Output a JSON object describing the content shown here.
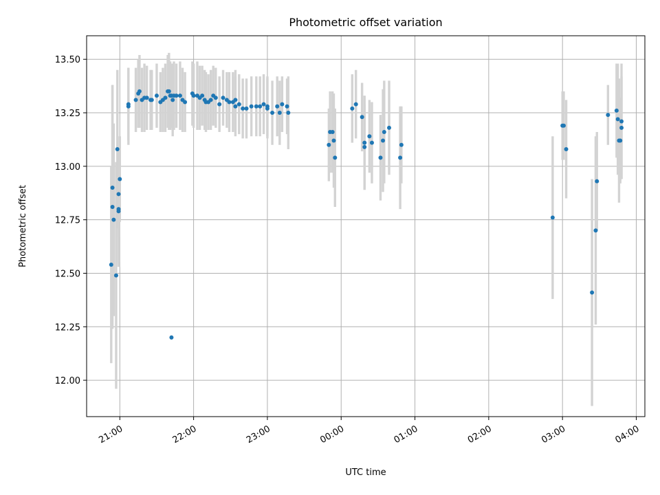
{
  "chart_data": {
    "type": "scatter",
    "title": "Photometric offset variation",
    "xlabel": "UTC time",
    "ylabel": "Photometric offset",
    "xlim": [
      "20:33",
      "04:07"
    ],
    "ylim": [
      11.83,
      13.61
    ],
    "grid": true,
    "x_ticks": [
      "21:00",
      "22:00",
      "23:00",
      "00:00",
      "01:00",
      "02:00",
      "03:00",
      "04:00"
    ],
    "y_ticks": [
      "12.00",
      "12.25",
      "12.50",
      "12.75",
      "13.00",
      "13.25",
      "13.50"
    ],
    "colors": {
      "point": "#1f77b4",
      "errorbar": "#d3d3d3",
      "grid": "#b0b0b0"
    },
    "series": [
      {
        "points": [
          {
            "t": "20:53",
            "y": 12.54,
            "err": 0.46
          },
          {
            "t": "20:54",
            "y": 12.81,
            "err": 0.57
          },
          {
            "t": "20:54",
            "y": 12.9,
            "err": 0.48
          },
          {
            "t": "20:55",
            "y": 12.75,
            "err": 0.45
          },
          {
            "t": "20:57",
            "y": 12.49,
            "err": 0.53
          },
          {
            "t": "20:58",
            "y": 13.08,
            "err": 0.37
          },
          {
            "t": "20:59",
            "y": 12.8,
            "err": 0.25
          },
          {
            "t": "20:59",
            "y": 12.87,
            "err": 0.2
          },
          {
            "t": "20:59",
            "y": 12.79,
            "err": 0.26
          },
          {
            "t": "21:00",
            "y": 12.94,
            "err": 0.2
          },
          {
            "t": "21:07",
            "y": 13.28,
            "err": 0.18
          },
          {
            "t": "21:07",
            "y": 13.29,
            "err": 0.17
          },
          {
            "t": "21:13",
            "y": 13.31,
            "err": 0.15
          },
          {
            "t": "21:15",
            "y": 13.34,
            "err": 0.16
          },
          {
            "t": "21:16",
            "y": 13.35,
            "err": 0.17
          },
          {
            "t": "21:18",
            "y": 13.31,
            "err": 0.15
          },
          {
            "t": "21:20",
            "y": 13.32,
            "err": 0.16
          },
          {
            "t": "21:22",
            "y": 13.32,
            "err": 0.15
          },
          {
            "t": "21:25",
            "y": 13.31,
            "err": 0.14
          },
          {
            "t": "21:26",
            "y": 13.31,
            "err": 0.14
          },
          {
            "t": "21:30",
            "y": 13.33,
            "err": 0.15
          },
          {
            "t": "21:33",
            "y": 13.3,
            "err": 0.14
          },
          {
            "t": "21:35",
            "y": 13.31,
            "err": 0.15
          },
          {
            "t": "21:37",
            "y": 13.32,
            "err": 0.16
          },
          {
            "t": "21:39",
            "y": 13.35,
            "err": 0.17
          },
          {
            "t": "21:40",
            "y": 13.35,
            "err": 0.18
          },
          {
            "t": "21:41",
            "y": 13.33,
            "err": 0.16
          },
          {
            "t": "21:42",
            "y": 13.33,
            "err": 0.15
          },
          {
            "t": "21:43",
            "y": 13.31,
            "err": 0.17
          },
          {
            "t": "21:44",
            "y": 13.33,
            "err": 0.16
          },
          {
            "t": "21:46",
            "y": 13.33,
            "err": 0.15
          },
          {
            "t": "21:49",
            "y": 13.33,
            "err": 0.16
          },
          {
            "t": "21:51",
            "y": 13.31,
            "err": 0.15
          },
          {
            "t": "21:53",
            "y": 13.3,
            "err": 0.14
          },
          {
            "t": "21:42",
            "y": 12.2,
            "err": 0.01
          },
          {
            "t": "21:59",
            "y": 13.34,
            "err": 0.15
          },
          {
            "t": "22:00",
            "y": 13.33,
            "err": 0.15
          },
          {
            "t": "22:03",
            "y": 13.33,
            "err": 0.16
          },
          {
            "t": "22:05",
            "y": 13.32,
            "err": 0.15
          },
          {
            "t": "22:07",
            "y": 13.33,
            "err": 0.14
          },
          {
            "t": "22:09",
            "y": 13.31,
            "err": 0.14
          },
          {
            "t": "22:10",
            "y": 13.3,
            "err": 0.14
          },
          {
            "t": "22:12",
            "y": 13.3,
            "err": 0.13
          },
          {
            "t": "22:14",
            "y": 13.31,
            "err": 0.14
          },
          {
            "t": "22:16",
            "y": 13.33,
            "err": 0.14
          },
          {
            "t": "22:18",
            "y": 13.32,
            "err": 0.14
          },
          {
            "t": "22:21",
            "y": 13.29,
            "err": 0.13
          },
          {
            "t": "22:24",
            "y": 13.32,
            "err": 0.13
          },
          {
            "t": "22:27",
            "y": 13.31,
            "err": 0.13
          },
          {
            "t": "22:29",
            "y": 13.3,
            "err": 0.14
          },
          {
            "t": "22:32",
            "y": 13.3,
            "err": 0.14
          },
          {
            "t": "22:34",
            "y": 13.28,
            "err": 0.14
          },
          {
            "t": "22:34",
            "y": 13.31,
            "err": 0.14
          },
          {
            "t": "22:37",
            "y": 13.29,
            "err": 0.14
          },
          {
            "t": "22:40",
            "y": 13.27,
            "err": 0.14
          },
          {
            "t": "22:43",
            "y": 13.27,
            "err": 0.14
          },
          {
            "t": "22:47",
            "y": 13.28,
            "err": 0.14
          },
          {
            "t": "22:51",
            "y": 13.28,
            "err": 0.14
          },
          {
            "t": "22:54",
            "y": 13.28,
            "err": 0.14
          },
          {
            "t": "22:57",
            "y": 13.29,
            "err": 0.14
          },
          {
            "t": "23:00",
            "y": 13.28,
            "err": 0.14
          },
          {
            "t": "23:00",
            "y": 13.27,
            "err": 0.14
          },
          {
            "t": "23:04",
            "y": 13.25,
            "err": 0.15
          },
          {
            "t": "23:08",
            "y": 13.28,
            "err": 0.14
          },
          {
            "t": "23:10",
            "y": 13.25,
            "err": 0.15
          },
          {
            "t": "23:12",
            "y": 13.29,
            "err": 0.13
          },
          {
            "t": "23:16",
            "y": 13.28,
            "err": 0.13
          },
          {
            "t": "23:17",
            "y": 13.25,
            "err": 0.17
          },
          {
            "t": "23:50",
            "y": 13.1,
            "err": 0.17
          },
          {
            "t": "23:51",
            "y": 13.16,
            "err": 0.19
          },
          {
            "t": "23:53",
            "y": 13.16,
            "err": 0.19
          },
          {
            "t": "23:54",
            "y": 13.12,
            "err": 0.22
          },
          {
            "t": "23:55",
            "y": 13.04,
            "err": 0.23
          },
          {
            "t": "00:09",
            "y": 13.27,
            "err": 0.16
          },
          {
            "t": "00:12",
            "y": 13.29,
            "err": 0.16
          },
          {
            "t": "00:17",
            "y": 13.23,
            "err": 0.16
          },
          {
            "t": "00:19",
            "y": 13.11,
            "err": 0.22
          },
          {
            "t": "00:19",
            "y": 13.09,
            "err": 0.2
          },
          {
            "t": "00:23",
            "y": 13.14,
            "err": 0.17
          },
          {
            "t": "00:25",
            "y": 13.11,
            "err": 0.19
          },
          {
            "t": "00:32",
            "y": 13.04,
            "err": 0.2
          },
          {
            "t": "00:34",
            "y": 13.12,
            "err": 0.24
          },
          {
            "t": "00:35",
            "y": 13.16,
            "err": 0.24
          },
          {
            "t": "00:39",
            "y": 13.18,
            "err": 0.22
          },
          {
            "t": "00:48",
            "y": 13.04,
            "err": 0.24
          },
          {
            "t": "00:49",
            "y": 13.1,
            "err": 0.18
          },
          {
            "t": "02:52",
            "y": 12.76,
            "err": 0.38
          },
          {
            "t": "03:00",
            "y": 13.19,
            "err": 0.16
          },
          {
            "t": "03:01",
            "y": 13.19,
            "err": 0.16
          },
          {
            "t": "03:03",
            "y": 13.08,
            "err": 0.23
          },
          {
            "t": "03:24",
            "y": 12.41,
            "err": 0.53
          },
          {
            "t": "03:27",
            "y": 12.7,
            "err": 0.44
          },
          {
            "t": "03:28",
            "y": 12.93,
            "err": 0.23
          },
          {
            "t": "03:37",
            "y": 13.24,
            "err": 0.14
          },
          {
            "t": "03:44",
            "y": 13.26,
            "err": 0.22
          },
          {
            "t": "03:45",
            "y": 13.22,
            "err": 0.26
          },
          {
            "t": "03:46",
            "y": 13.12,
            "err": 0.29
          },
          {
            "t": "03:47",
            "y": 13.12,
            "err": 0.2
          },
          {
            "t": "03:48",
            "y": 13.18,
            "err": 0.24
          },
          {
            "t": "03:48",
            "y": 13.21,
            "err": 0.27
          }
        ]
      }
    ]
  }
}
